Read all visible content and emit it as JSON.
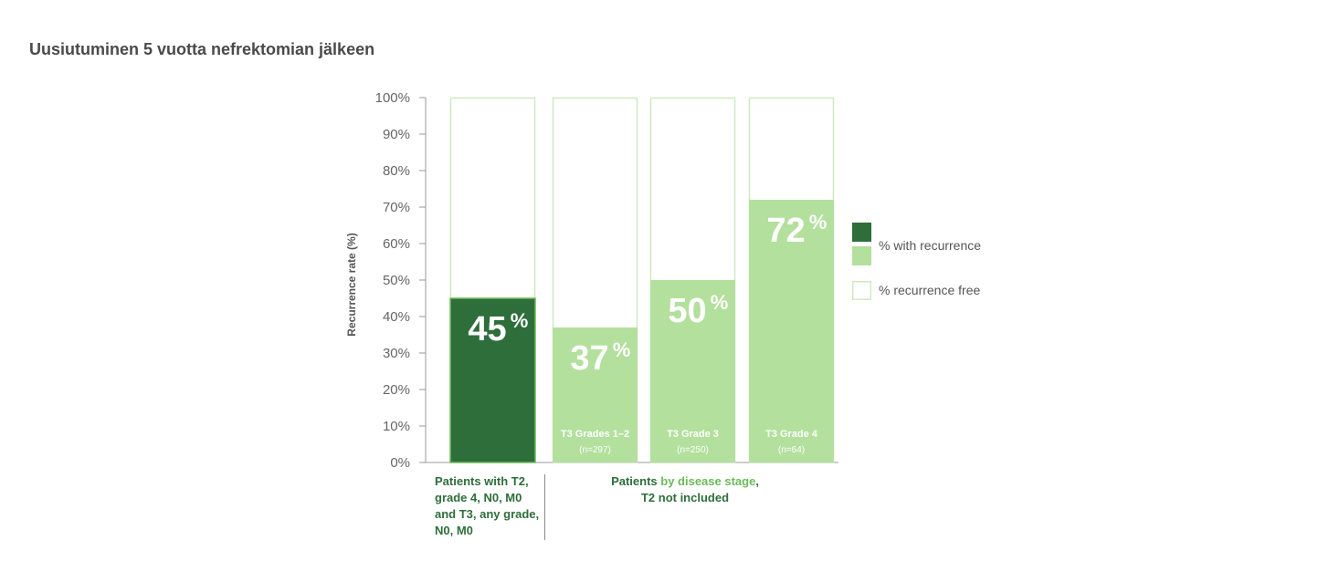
{
  "title": "Uusiutuminen 5 vuotta nefrektomian jälkeen",
  "chart_data": {
    "type": "bar",
    "stacked": true,
    "ylabel": "Recurrence rate (%)",
    "ylim": [
      0,
      100
    ],
    "yticks": [
      "0%",
      "10%",
      "20%",
      "30%",
      "40%",
      "50%",
      "60%",
      "70%",
      "80%",
      "90%",
      "100%"
    ],
    "bars": [
      {
        "value": 45,
        "label": "45",
        "sign": "%",
        "category": "",
        "n": "",
        "color": "#2e6e3b"
      },
      {
        "value": 37,
        "label": "37",
        "sign": "%",
        "category": "T3 Grades 1–2",
        "n": "(n=297)",
        "color": "#b3e09d"
      },
      {
        "value": 50,
        "label": "50",
        "sign": "%",
        "category": "T3 Grade 3",
        "n": "(n=250)",
        "color": "#b3e09d"
      },
      {
        "value": 72,
        "label": "72",
        "sign": "%",
        "category": "T3 Grade 4",
        "n": "(n=64)",
        "color": "#b3e09d"
      }
    ],
    "legend": [
      {
        "label": "% with recurrence",
        "colors": [
          "#2e6e3b",
          "#b3e09d"
        ]
      },
      {
        "label": "% recurrence free",
        "colors": [
          "#ffffff"
        ]
      }
    ],
    "groups": [
      {
        "lines": [
          "Patients with T2,",
          "grade 4, N0, M0",
          "and T3, any grade,",
          "N0, M0"
        ]
      },
      {
        "line1_a": "Patients ",
        "line1_b": "by disease stage",
        "line1_c": ",",
        "line2": "T2 not included"
      }
    ],
    "colors": {
      "dark_green": "#2e6e3b",
      "light_green": "#b3e09d",
      "outline": "#cfe9c2",
      "axis": "#999999"
    }
  }
}
